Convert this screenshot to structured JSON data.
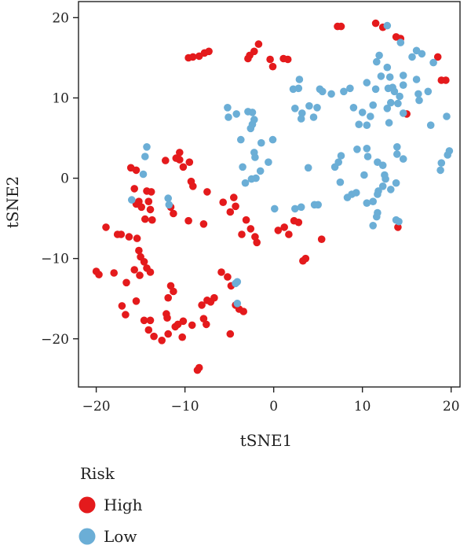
{
  "chart_data": {
    "type": "scatter",
    "xlabel": "tSNE1",
    "ylabel": "tSNE2",
    "xlim": [
      -22,
      21
    ],
    "ylim": [
      -26,
      22
    ],
    "xticks": [
      -20,
      -10,
      0,
      10,
      20
    ],
    "yticks": [
      -20,
      -10,
      0,
      10,
      20
    ],
    "grid": false,
    "legend": {
      "title": "Risk",
      "placement": "bottom-left"
    },
    "series": [
      {
        "name": "High",
        "color": "#e41a1c",
        "points": [
          [
            11.5,
            19.3
          ],
          [
            12.3,
            18.8
          ],
          [
            7.2,
            18.9
          ],
          [
            7.6,
            18.9
          ],
          [
            13.8,
            17.6
          ],
          [
            14.3,
            17.4
          ],
          [
            -7.3,
            15.8
          ],
          [
            -7.8,
            15.6
          ],
          [
            -8.4,
            15.2
          ],
          [
            -9.1,
            15.1
          ],
          [
            -9.6,
            15.0
          ],
          [
            -1.7,
            16.7
          ],
          [
            -2.2,
            15.8
          ],
          [
            -2.7,
            15.3
          ],
          [
            -2.9,
            14.9
          ],
          [
            -0.4,
            14.8
          ],
          [
            -0.1,
            13.9
          ],
          [
            1.1,
            14.9
          ],
          [
            1.6,
            14.8
          ],
          [
            18.5,
            15.1
          ],
          [
            18.9,
            12.2
          ],
          [
            19.4,
            12.2
          ],
          [
            15.0,
            8.0
          ],
          [
            -10.6,
            3.2
          ],
          [
            -11.0,
            2.5
          ],
          [
            -10.6,
            2.3
          ],
          [
            -12.2,
            2.2
          ],
          [
            -9.5,
            2.0
          ],
          [
            -10.2,
            1.4
          ],
          [
            -16.1,
            1.3
          ],
          [
            -15.5,
            1.0
          ],
          [
            -9.3,
            -0.4
          ],
          [
            -9.1,
            -1.0
          ],
          [
            -7.5,
            -1.7
          ],
          [
            -15.7,
            -1.3
          ],
          [
            -14.3,
            -1.6
          ],
          [
            -13.8,
            -1.7
          ],
          [
            -15.2,
            -2.9
          ],
          [
            -14.1,
            -2.9
          ],
          [
            -15.5,
            -3.2
          ],
          [
            -14.9,
            -3.6
          ],
          [
            -13.9,
            -3.9
          ],
          [
            -11.6,
            -3.6
          ],
          [
            -5.7,
            -3.0
          ],
          [
            -4.5,
            -2.4
          ],
          [
            -4.3,
            -3.5
          ],
          [
            -4.9,
            -4.2
          ],
          [
            -11.3,
            -4.4
          ],
          [
            -14.5,
            -5.1
          ],
          [
            -13.7,
            -5.2
          ],
          [
            -9.6,
            -5.3
          ],
          [
            -7.9,
            -5.7
          ],
          [
            -3.1,
            -5.2
          ],
          [
            -2.6,
            -6.3
          ],
          [
            -3.6,
            -7.0
          ],
          [
            -2.1,
            -7.3
          ],
          [
            -1.9,
            -8.0
          ],
          [
            0.5,
            -6.5
          ],
          [
            1.7,
            -7.0
          ],
          [
            1.2,
            -6.1
          ],
          [
            2.3,
            -5.3
          ],
          [
            2.8,
            -5.5
          ],
          [
            5.4,
            -7.6
          ],
          [
            3.3,
            -10.3
          ],
          [
            3.6,
            -10.0
          ],
          [
            14.0,
            -6.1
          ],
          [
            -18.9,
            -6.1
          ],
          [
            -17.6,
            -7.0
          ],
          [
            -17.2,
            -7.0
          ],
          [
            -16.3,
            -7.3
          ],
          [
            -15.4,
            -7.5
          ],
          [
            -15.2,
            -9.0
          ],
          [
            -15.0,
            -9.8
          ],
          [
            -14.6,
            -10.4
          ],
          [
            -14.3,
            -11.2
          ],
          [
            -13.9,
            -11.7
          ],
          [
            -15.7,
            -11.4
          ],
          [
            -15.1,
            -12.1
          ],
          [
            -16.6,
            -13.0
          ],
          [
            -18.0,
            -11.8
          ],
          [
            -20.0,
            -11.6
          ],
          [
            -19.7,
            -12.0
          ],
          [
            -5.9,
            -11.7
          ],
          [
            -5.2,
            -12.3
          ],
          [
            -4.8,
            -13.4
          ],
          [
            -11.6,
            -13.4
          ],
          [
            -11.3,
            -14.1
          ],
          [
            -11.9,
            -14.9
          ],
          [
            -6.7,
            -14.9
          ],
          [
            -7.5,
            -15.2
          ],
          [
            -7.1,
            -15.4
          ],
          [
            -8.1,
            -15.8
          ],
          [
            -15.5,
            -15.3
          ],
          [
            -17.1,
            -15.9
          ],
          [
            -4.3,
            -15.8
          ],
          [
            -3.9,
            -16.3
          ],
          [
            -3.4,
            -16.6
          ],
          [
            -16.7,
            -17.0
          ],
          [
            -12.1,
            -16.9
          ],
          [
            -12.0,
            -17.4
          ],
          [
            -14.6,
            -17.7
          ],
          [
            -13.9,
            -17.7
          ],
          [
            -10.2,
            -17.8
          ],
          [
            -10.8,
            -18.2
          ],
          [
            -7.9,
            -17.5
          ],
          [
            -7.6,
            -18.2
          ],
          [
            -9.2,
            -18.3
          ],
          [
            -11.1,
            -18.5
          ],
          [
            -14.1,
            -18.9
          ],
          [
            -10.3,
            -19.8
          ],
          [
            -13.5,
            -19.7
          ],
          [
            -11.9,
            -19.4
          ],
          [
            -12.6,
            -20.2
          ],
          [
            -4.9,
            -19.4
          ],
          [
            -8.4,
            -23.6
          ],
          [
            -8.6,
            -23.9
          ]
        ]
      },
      {
        "name": "Low",
        "color": "#6baed6",
        "points": [
          [
            12.8,
            19.0
          ],
          [
            14.3,
            16.9
          ],
          [
            16.1,
            15.9
          ],
          [
            16.7,
            15.5
          ],
          [
            11.9,
            15.3
          ],
          [
            15.6,
            15.1
          ],
          [
            11.6,
            14.5
          ],
          [
            12.8,
            13.8
          ],
          [
            18.0,
            14.4
          ],
          [
            12.1,
            12.7
          ],
          [
            13.1,
            12.6
          ],
          [
            14.6,
            12.8
          ],
          [
            16.1,
            12.3
          ],
          [
            10.5,
            11.9
          ],
          [
            12.9,
            11.2
          ],
          [
            13.4,
            11.3
          ],
          [
            14.6,
            11.6
          ],
          [
            11.5,
            11.1
          ],
          [
            13.6,
            10.8
          ],
          [
            16.3,
            10.5
          ],
          [
            17.4,
            10.8
          ],
          [
            2.9,
            12.3
          ],
          [
            2.2,
            11.1
          ],
          [
            2.8,
            11.2
          ],
          [
            5.2,
            11.1
          ],
          [
            5.5,
            10.8
          ],
          [
            6.5,
            10.5
          ],
          [
            7.9,
            10.8
          ],
          [
            8.6,
            11.2
          ],
          [
            14.2,
            10.2
          ],
          [
            13.2,
            9.4
          ],
          [
            14.0,
            9.3
          ],
          [
            11.2,
            9.1
          ],
          [
            -5.2,
            8.8
          ],
          [
            -4.2,
            8.0
          ],
          [
            -2.9,
            8.3
          ],
          [
            -2.4,
            8.2
          ],
          [
            -2.2,
            7.3
          ],
          [
            -2.4,
            6.7
          ],
          [
            -5.1,
            7.6
          ],
          [
            2.4,
            8.7
          ],
          [
            3.2,
            8.1
          ],
          [
            4.0,
            9.0
          ],
          [
            4.9,
            8.8
          ],
          [
            4.5,
            7.6
          ],
          [
            3.1,
            7.4
          ],
          [
            9.0,
            8.8
          ],
          [
            10.0,
            8.2
          ],
          [
            10.9,
            7.7
          ],
          [
            12.8,
            8.7
          ],
          [
            14.6,
            8.1
          ],
          [
            16.4,
            9.7
          ],
          [
            19.5,
            7.7
          ],
          [
            9.6,
            6.7
          ],
          [
            10.5,
            6.6
          ],
          [
            13.0,
            6.9
          ],
          [
            17.7,
            6.6
          ],
          [
            -2.6,
            6.2
          ],
          [
            -3.7,
            4.8
          ],
          [
            -1.4,
            4.4
          ],
          [
            -0.1,
            4.8
          ],
          [
            -2.2,
            3.2
          ],
          [
            -2.1,
            2.6
          ],
          [
            -14.3,
            3.9
          ],
          [
            -14.5,
            2.7
          ],
          [
            7.6,
            2.8
          ],
          [
            7.3,
            2.0
          ],
          [
            9.4,
            3.6
          ],
          [
            10.5,
            3.7
          ],
          [
            10.6,
            2.7
          ],
          [
            11.7,
            2.0
          ],
          [
            12.3,
            1.6
          ],
          [
            13.9,
            3.9
          ],
          [
            13.9,
            3.0
          ],
          [
            14.6,
            2.4
          ],
          [
            19.6,
            2.9
          ],
          [
            19.8,
            3.4
          ],
          [
            -3.5,
            1.4
          ],
          [
            -0.6,
            2.0
          ],
          [
            -1.5,
            0.9
          ],
          [
            -2.0,
            0.0
          ],
          [
            -2.5,
            -0.1
          ],
          [
            3.9,
            1.3
          ],
          [
            6.9,
            1.4
          ],
          [
            -3.2,
            -0.6
          ],
          [
            -14.7,
            0.5
          ],
          [
            18.9,
            1.9
          ],
          [
            18.8,
            1.0
          ],
          [
            7.5,
            -0.5
          ],
          [
            10.2,
            0.4
          ],
          [
            12.5,
            0.4
          ],
          [
            12.6,
            -0.1
          ],
          [
            12.3,
            -1.0
          ],
          [
            11.8,
            -1.6
          ],
          [
            8.3,
            -2.4
          ],
          [
            8.8,
            -2.0
          ],
          [
            9.3,
            -1.8
          ],
          [
            11.7,
            -2.0
          ],
          [
            11.2,
            -2.9
          ],
          [
            10.5,
            -3.1
          ],
          [
            13.2,
            -1.4
          ],
          [
            13.8,
            -0.6
          ],
          [
            -11.9,
            -2.5
          ],
          [
            -16.0,
            -2.7
          ],
          [
            -11.8,
            -3.3
          ],
          [
            0.1,
            -3.8
          ],
          [
            2.4,
            -3.8
          ],
          [
            3.1,
            -3.6
          ],
          [
            4.6,
            -3.3
          ],
          [
            5.0,
            -3.3
          ],
          [
            11.7,
            -4.3
          ],
          [
            11.6,
            -4.8
          ],
          [
            13.8,
            -5.2
          ],
          [
            14.1,
            -5.4
          ],
          [
            11.2,
            -5.9
          ],
          [
            -4.3,
            -13.1
          ],
          [
            -4.1,
            -12.9
          ],
          [
            -4.1,
            -15.6
          ]
        ]
      }
    ]
  }
}
